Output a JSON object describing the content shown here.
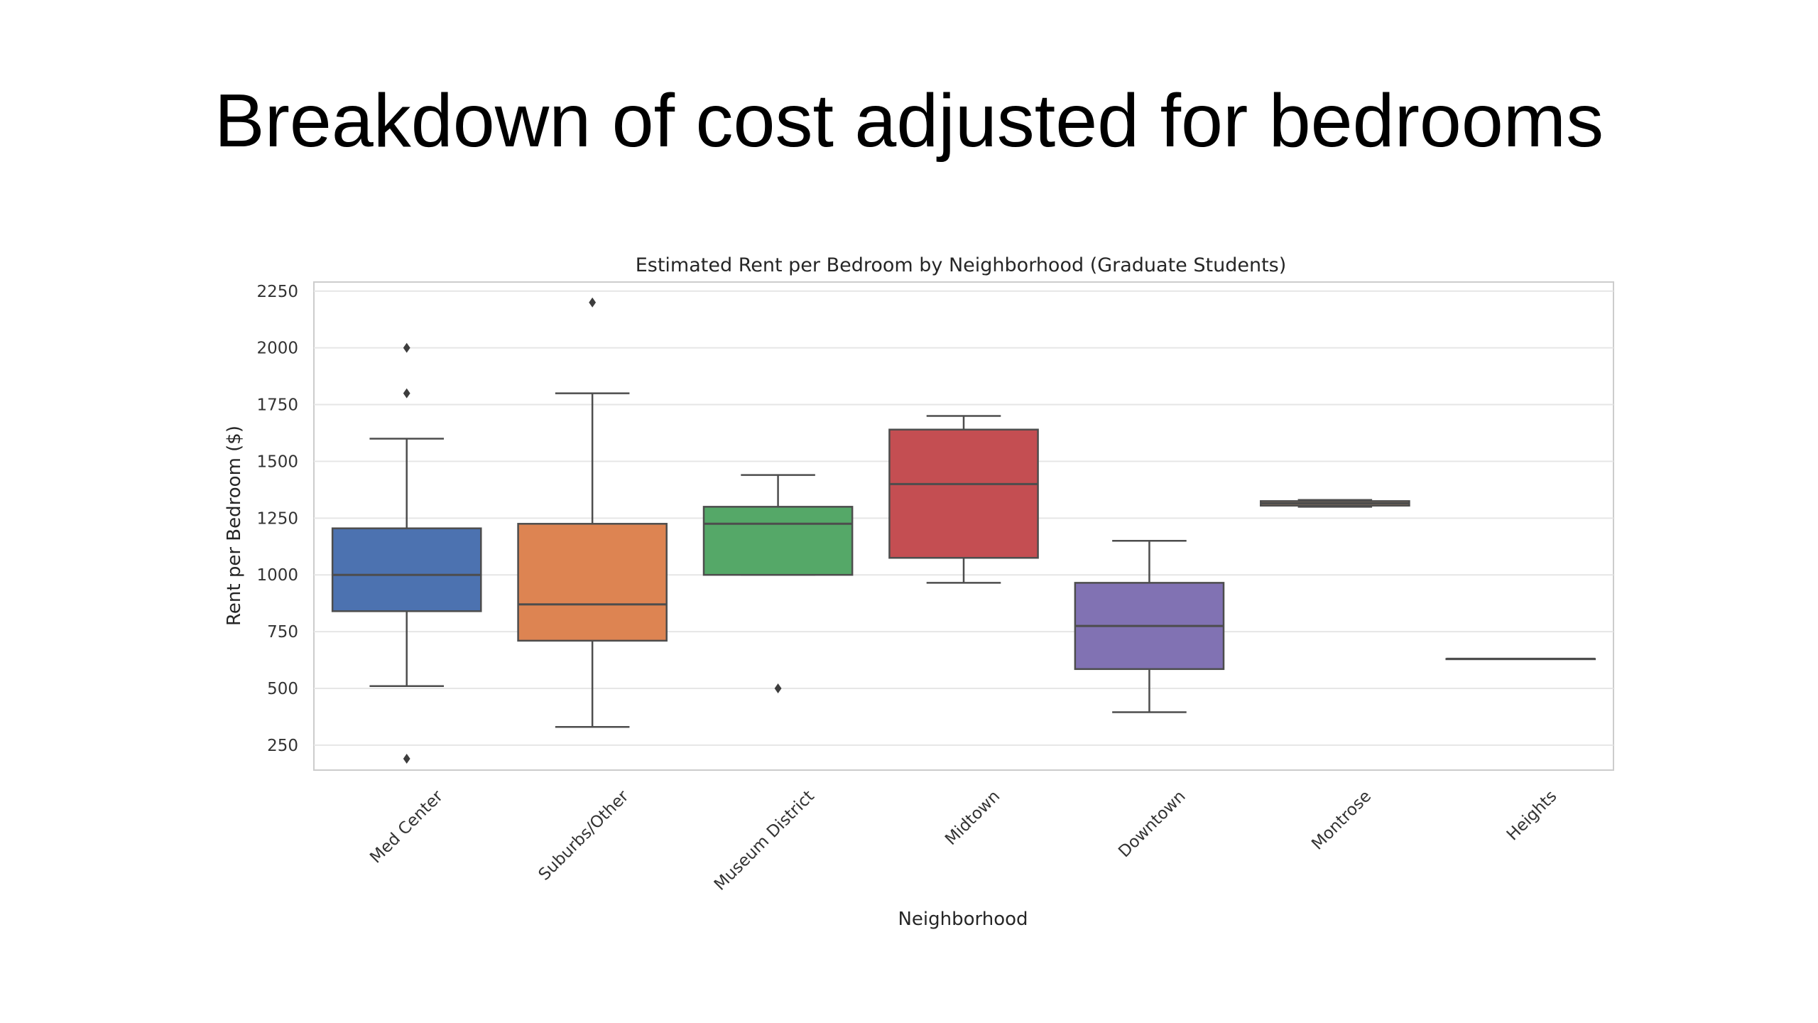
{
  "slide": {
    "title": "Breakdown of cost adjusted for bedrooms"
  },
  "chart_data": {
    "type": "box",
    "title": "Estimated Rent per Bedroom by Neighborhood (Graduate Students)",
    "xlabel": "Neighborhood",
    "ylabel": "Rent per Bedroom ($)",
    "ylim": [
      140,
      2290
    ],
    "yticks": [
      250,
      500,
      750,
      1000,
      1250,
      1500,
      1750,
      2000,
      2250
    ],
    "grid": true,
    "categories": [
      "Med Center",
      "Suburbs/Other",
      "Museum District",
      "Midtown",
      "Downtown",
      "Montrose",
      "Heights"
    ],
    "boxes": [
      {
        "name": "Med Center",
        "whisker_low": 510,
        "q1": 840,
        "median": 1000,
        "q3": 1205,
        "whisker_high": 1600,
        "outliers": [
          190,
          1800,
          2000
        ],
        "color": "#4c72b0"
      },
      {
        "name": "Suburbs/Other",
        "whisker_low": 330,
        "q1": 710,
        "median": 870,
        "q3": 1225,
        "whisker_high": 1800,
        "outliers": [
          2200
        ],
        "color": "#dd8452"
      },
      {
        "name": "Museum District",
        "whisker_low": 1000,
        "q1": 1000,
        "median": 1225,
        "q3": 1300,
        "whisker_high": 1440,
        "outliers": [
          500
        ],
        "color": "#55a868"
      },
      {
        "name": "Midtown",
        "whisker_low": 965,
        "q1": 1075,
        "median": 1400,
        "q3": 1640,
        "whisker_high": 1700,
        "outliers": [],
        "color": "#c44e52"
      },
      {
        "name": "Downtown",
        "whisker_low": 395,
        "q1": 585,
        "median": 775,
        "q3": 965,
        "whisker_high": 1150,
        "outliers": [],
        "color": "#8172b3"
      },
      {
        "name": "Montrose",
        "whisker_low": 1300,
        "q1": 1305,
        "median": 1315,
        "q3": 1325,
        "whisker_high": 1330,
        "outliers": [],
        "color": "#937860"
      },
      {
        "name": "Heights",
        "whisker_low": 630,
        "q1": 630,
        "median": 630,
        "q3": 630,
        "whisker_high": 630,
        "outliers": [],
        "color": "#da8bc3"
      }
    ]
  }
}
